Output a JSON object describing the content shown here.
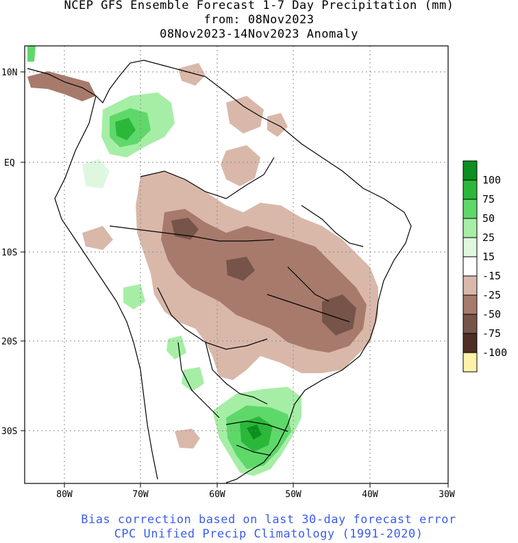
{
  "title": {
    "line1": "NCEP GFS Ensemble Forecast 1-7 Day Precipitation (mm)",
    "line2": "from: 08Nov2023",
    "line3": "08Nov2023-14Nov2023 Anomaly"
  },
  "footer": {
    "line1": "Bias correction based on last 30-day forecast error",
    "line2": "CPC Unified Precip Climatology (1991-2020)"
  },
  "axes": {
    "lat_labels": [
      "10N",
      "EQ",
      "10S",
      "20S",
      "30S"
    ],
    "lon_labels": [
      "80W",
      "70W",
      "60W",
      "50W",
      "40W",
      "30W"
    ]
  },
  "legend": {
    "items": [
      {
        "label": "100",
        "color": "#0b8f1e"
      },
      {
        "label": "75",
        "color": "#2bb83a"
      },
      {
        "label": "50",
        "color": "#5fd86a"
      },
      {
        "label": "25",
        "color": "#a6eea6"
      },
      {
        "label": "15",
        "color": "#dff7df"
      },
      {
        "label": "-15",
        "color": "#ffffff"
      },
      {
        "label": "-25",
        "color": "#d9b8aa"
      },
      {
        "label": "-50",
        "color": "#a77a6c"
      },
      {
        "label": "-75",
        "color": "#76544a"
      },
      {
        "label": "-100",
        "color": "#4f2e25"
      }
    ],
    "bottom_color": "#fff2a8"
  },
  "colors": {
    "frame": "#000000",
    "grid": "#888888",
    "footer_text": "#3a5cf0"
  }
}
